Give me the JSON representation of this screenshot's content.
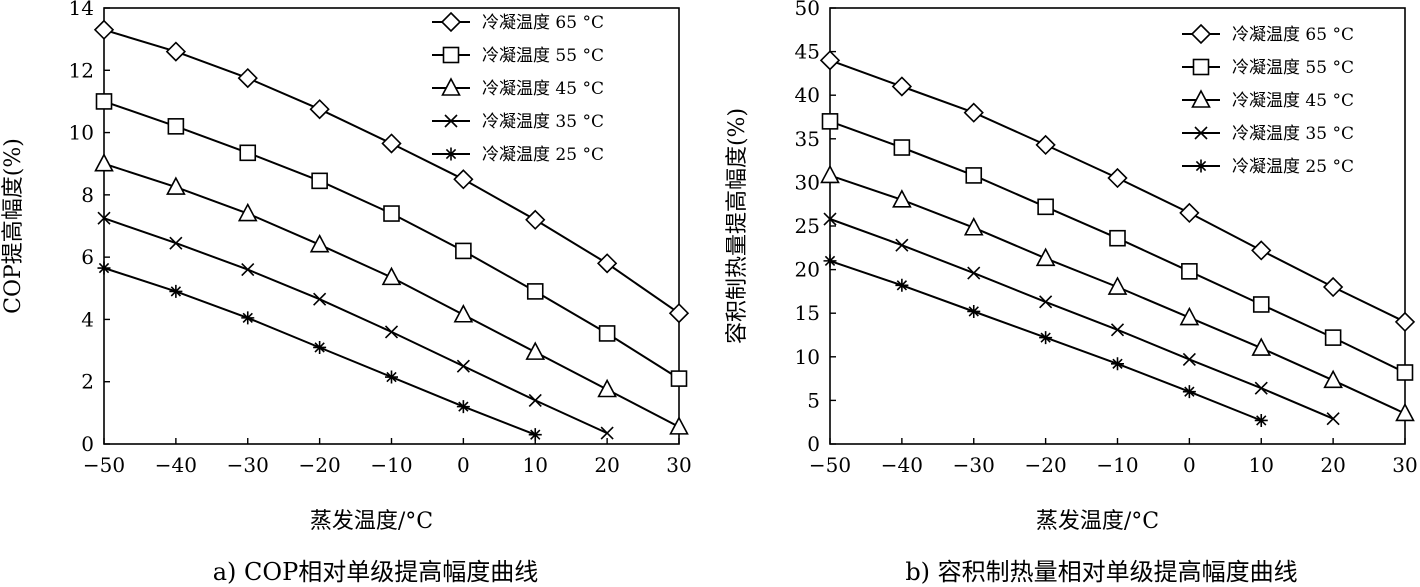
{
  "chart_data": [
    {
      "type": "line",
      "caption": "a) COP相对单级提高幅度曲线",
      "xlabel": "蒸发温度/°C",
      "ylabel": "COP提高幅度(%)",
      "xlim": [
        -50,
        30
      ],
      "ylim": [
        0,
        14
      ],
      "xticks": [
        "−50",
        "−40",
        "−30",
        "−20",
        "−10",
        "0",
        "10",
        "20",
        "30"
      ],
      "yticks": [
        "0",
        "2",
        "4",
        "6",
        "8",
        "10",
        "12",
        "14"
      ],
      "legend_position": "top-right",
      "series": [
        {
          "name": "冷凝温度 65 °C",
          "marker": "diamond",
          "x": [
            -50,
            -40,
            -30,
            -20,
            -10,
            0,
            10,
            20,
            30
          ],
          "y": [
            13.3,
            12.6,
            11.75,
            10.75,
            9.65,
            8.5,
            7.2,
            5.8,
            4.2
          ]
        },
        {
          "name": "冷凝温度 55 °C",
          "marker": "square",
          "x": [
            -50,
            -40,
            -30,
            -20,
            -10,
            0,
            10,
            20,
            30
          ],
          "y": [
            11.0,
            10.2,
            9.35,
            8.45,
            7.4,
            6.2,
            4.9,
            3.55,
            2.1
          ]
        },
        {
          "name": "冷凝温度 45 °C",
          "marker": "triangle",
          "x": [
            -50,
            -40,
            -30,
            -20,
            -10,
            0,
            10,
            20,
            30
          ],
          "y": [
            9.0,
            8.25,
            7.4,
            6.4,
            5.35,
            4.15,
            2.95,
            1.75,
            0.55
          ]
        },
        {
          "name": "冷凝温度 35 °C",
          "marker": "x",
          "x": [
            -50,
            -40,
            -30,
            -20,
            -10,
            0,
            10,
            20
          ],
          "y": [
            7.25,
            6.45,
            5.6,
            4.65,
            3.6,
            2.5,
            1.4,
            0.35
          ]
        },
        {
          "name": "冷凝温度 25 °C",
          "marker": "star",
          "x": [
            -50,
            -40,
            -30,
            -20,
            -10,
            0,
            10
          ],
          "y": [
            5.65,
            4.9,
            4.05,
            3.1,
            2.15,
            1.2,
            0.3
          ]
        }
      ]
    },
    {
      "type": "line",
      "caption": "b) 容积制热量相对单级提高幅度曲线",
      "xlabel": "蒸发温度/°C",
      "ylabel": "容积制热量提高幅度(%)",
      "xlim": [
        -50,
        30
      ],
      "ylim": [
        0,
        50
      ],
      "xticks": [
        "−50",
        "−40",
        "−30",
        "−20",
        "−10",
        "0",
        "10",
        "20",
        "30"
      ],
      "yticks": [
        "0",
        "5",
        "10",
        "15",
        "20",
        "25",
        "30",
        "35",
        "40",
        "45",
        "50"
      ],
      "legend_position": "top-right",
      "series": [
        {
          "name": "冷凝温度 65 °C",
          "marker": "diamond",
          "x": [
            -50,
            -40,
            -30,
            -20,
            -10,
            0,
            10,
            20,
            30
          ],
          "y": [
            44.0,
            41.0,
            38.0,
            34.3,
            30.5,
            26.5,
            22.2,
            18.0,
            14.0
          ]
        },
        {
          "name": "冷凝温度 55 °C",
          "marker": "square",
          "x": [
            -50,
            -40,
            -30,
            -20,
            -10,
            0,
            10,
            20,
            30
          ],
          "y": [
            37.0,
            34.0,
            30.8,
            27.2,
            23.6,
            19.8,
            16.0,
            12.2,
            8.2
          ]
        },
        {
          "name": "冷凝温度 45 °C",
          "marker": "triangle",
          "x": [
            -50,
            -40,
            -30,
            -20,
            -10,
            0,
            10,
            20,
            30
          ],
          "y": [
            30.8,
            28.0,
            24.8,
            21.3,
            18.0,
            14.5,
            11.0,
            7.3,
            3.5
          ]
        },
        {
          "name": "冷凝温度 35 °C",
          "marker": "x",
          "x": [
            -50,
            -40,
            -30,
            -20,
            -10,
            0,
            10,
            20
          ],
          "y": [
            25.8,
            22.8,
            19.6,
            16.3,
            13.1,
            9.7,
            6.4,
            2.9
          ]
        },
        {
          "name": "冷凝温度 25 °C",
          "marker": "star",
          "x": [
            -50,
            -40,
            -30,
            -20,
            -10,
            0,
            10
          ],
          "y": [
            21.0,
            18.2,
            15.2,
            12.2,
            9.2,
            6.0,
            2.7
          ]
        }
      ]
    }
  ]
}
